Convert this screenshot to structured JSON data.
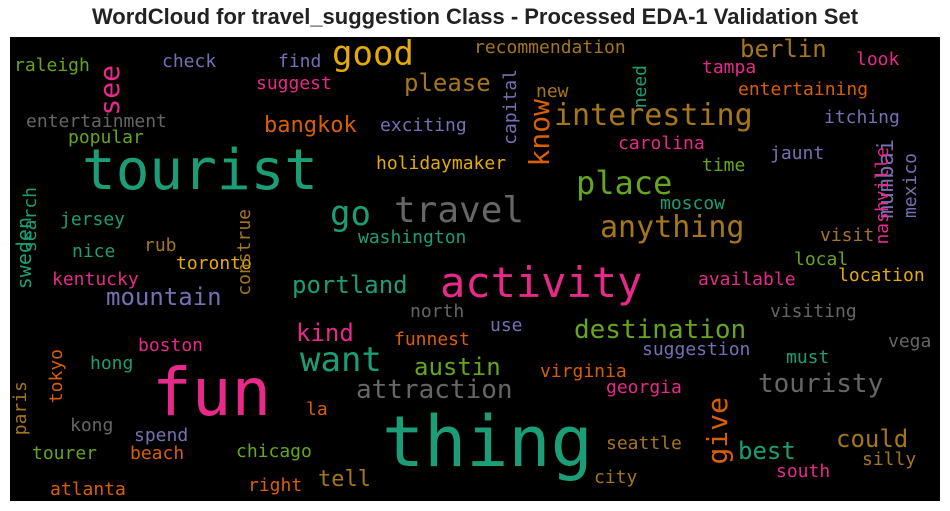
{
  "chart_data": {
    "type": "wordcloud",
    "title": "WordCloud for travel_suggestion Class - Processed EDA-1 Validation Set",
    "background": "#000000",
    "palette": [
      "#1b9e77",
      "#d95f02",
      "#7570b3",
      "#e7298a",
      "#66a61e",
      "#e6ab02",
      "#a6761d",
      "#666666"
    ],
    "words": [
      {
        "text": "thing",
        "c": 0
      },
      {
        "text": "fun",
        "c": 3
      },
      {
        "text": "tourist",
        "c": 0
      },
      {
        "text": "activity",
        "c": 3
      },
      {
        "text": "travel",
        "c": 7
      },
      {
        "text": "good",
        "c": 5
      },
      {
        "text": "place",
        "c": 4
      },
      {
        "text": "go",
        "c": 0
      },
      {
        "text": "want",
        "c": 0
      },
      {
        "text": "interesting",
        "c": 6
      },
      {
        "text": "anything",
        "c": 6
      },
      {
        "text": "attraction",
        "c": 7
      },
      {
        "text": "touristy",
        "c": 7
      },
      {
        "text": "destination",
        "c": 4
      },
      {
        "text": "mountain",
        "c": 2
      },
      {
        "text": "portland",
        "c": 0
      },
      {
        "text": "please",
        "c": 6
      },
      {
        "text": "berlin",
        "c": 6
      },
      {
        "text": "know",
        "c": 1
      },
      {
        "text": "see",
        "c": 3
      },
      {
        "text": "give",
        "c": 1
      },
      {
        "text": "austin",
        "c": 4
      },
      {
        "text": "kind",
        "c": 3
      },
      {
        "text": "could",
        "c": 6
      },
      {
        "text": "best",
        "c": 0
      },
      {
        "text": "bangkok",
        "c": 1
      },
      {
        "text": "mumbai",
        "c": 2
      },
      {
        "text": "tell",
        "c": 6
      },
      {
        "text": "sweden",
        "c": 0
      },
      {
        "text": "washington",
        "c": 0
      },
      {
        "text": "holidaymaker",
        "c": 5
      },
      {
        "text": "exciting",
        "c": 2
      },
      {
        "text": "recommendation",
        "c": 6
      },
      {
        "text": "entertaining",
        "c": 1
      },
      {
        "text": "entertainment",
        "c": 7
      },
      {
        "text": "popular",
        "c": 4
      },
      {
        "text": "raleigh",
        "c": 4
      },
      {
        "text": "check",
        "c": 2
      },
      {
        "text": "find",
        "c": 2
      },
      {
        "text": "suggest",
        "c": 3
      },
      {
        "text": "capital",
        "c": 2
      },
      {
        "text": "need",
        "c": 0
      },
      {
        "text": "new",
        "c": 6
      },
      {
        "text": "tampa",
        "c": 3
      },
      {
        "text": "look",
        "c": 3
      },
      {
        "text": "itching",
        "c": 2
      },
      {
        "text": "carolina",
        "c": 3
      },
      {
        "text": "jaunt",
        "c": 2
      },
      {
        "text": "time",
        "c": 4
      },
      {
        "text": "mexico",
        "c": 2
      },
      {
        "text": "nashville",
        "c": 3
      },
      {
        "text": "moscow",
        "c": 0
      },
      {
        "text": "visit",
        "c": 6
      },
      {
        "text": "local",
        "c": 4
      },
      {
        "text": "location",
        "c": 5
      },
      {
        "text": "available",
        "c": 3
      },
      {
        "text": "visiting",
        "c": 7
      },
      {
        "text": "suggestion",
        "c": 2
      },
      {
        "text": "must",
        "c": 0
      },
      {
        "text": "vega",
        "c": 7
      },
      {
        "text": "jersey",
        "c": 0
      },
      {
        "text": "nice",
        "c": 0
      },
      {
        "text": "rub",
        "c": 6
      },
      {
        "text": "toronto",
        "c": 5
      },
      {
        "text": "kentucky",
        "c": 3
      },
      {
        "text": "construe",
        "c": 6
      },
      {
        "text": "search",
        "c": 0
      },
      {
        "text": "north",
        "c": 7
      },
      {
        "text": "use",
        "c": 2
      },
      {
        "text": "funnest",
        "c": 1
      },
      {
        "text": "virginia",
        "c": 1
      },
      {
        "text": "georgia",
        "c": 3
      },
      {
        "text": "boston",
        "c": 3
      },
      {
        "text": "hong",
        "c": 0
      },
      {
        "text": "tokyo",
        "c": 1
      },
      {
        "text": "paris",
        "c": 6
      },
      {
        "text": "kong",
        "c": 7
      },
      {
        "text": "spend",
        "c": 2
      },
      {
        "text": "la",
        "c": 1
      },
      {
        "text": "chicago",
        "c": 4
      },
      {
        "text": "seattle",
        "c": 6
      },
      {
        "text": "silly",
        "c": 6
      },
      {
        "text": "south",
        "c": 3
      },
      {
        "text": "tourer",
        "c": 4
      },
      {
        "text": "beach",
        "c": 1
      },
      {
        "text": "atlanta",
        "c": 1
      },
      {
        "text": "right",
        "c": 1
      },
      {
        "text": "city",
        "c": 6
      }
    ]
  }
}
